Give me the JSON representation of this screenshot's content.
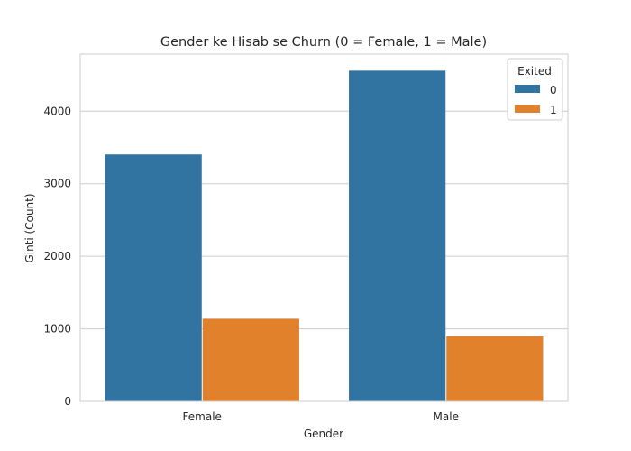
{
  "chart_data": {
    "type": "bar",
    "title": "Gender ke Hisab se Churn (0 = Female, 1 = Male)",
    "xlabel": "Gender",
    "ylabel": "Ginti (Count)",
    "categories": [
      "Female",
      "Male"
    ],
    "series": [
      {
        "name": "0",
        "values": [
          3404,
          4559
        ],
        "color": "#3274a1"
      },
      {
        "name": "1",
        "values": [
          1139,
          898
        ],
        "color": "#e1812c"
      }
    ],
    "yticks": [
      "0",
      "1000",
      "2000",
      "3000",
      "4000"
    ],
    "ylim": [
      0,
      4787
    ],
    "grid": true,
    "legend": {
      "title": "Exited",
      "placement": "top-right"
    }
  }
}
